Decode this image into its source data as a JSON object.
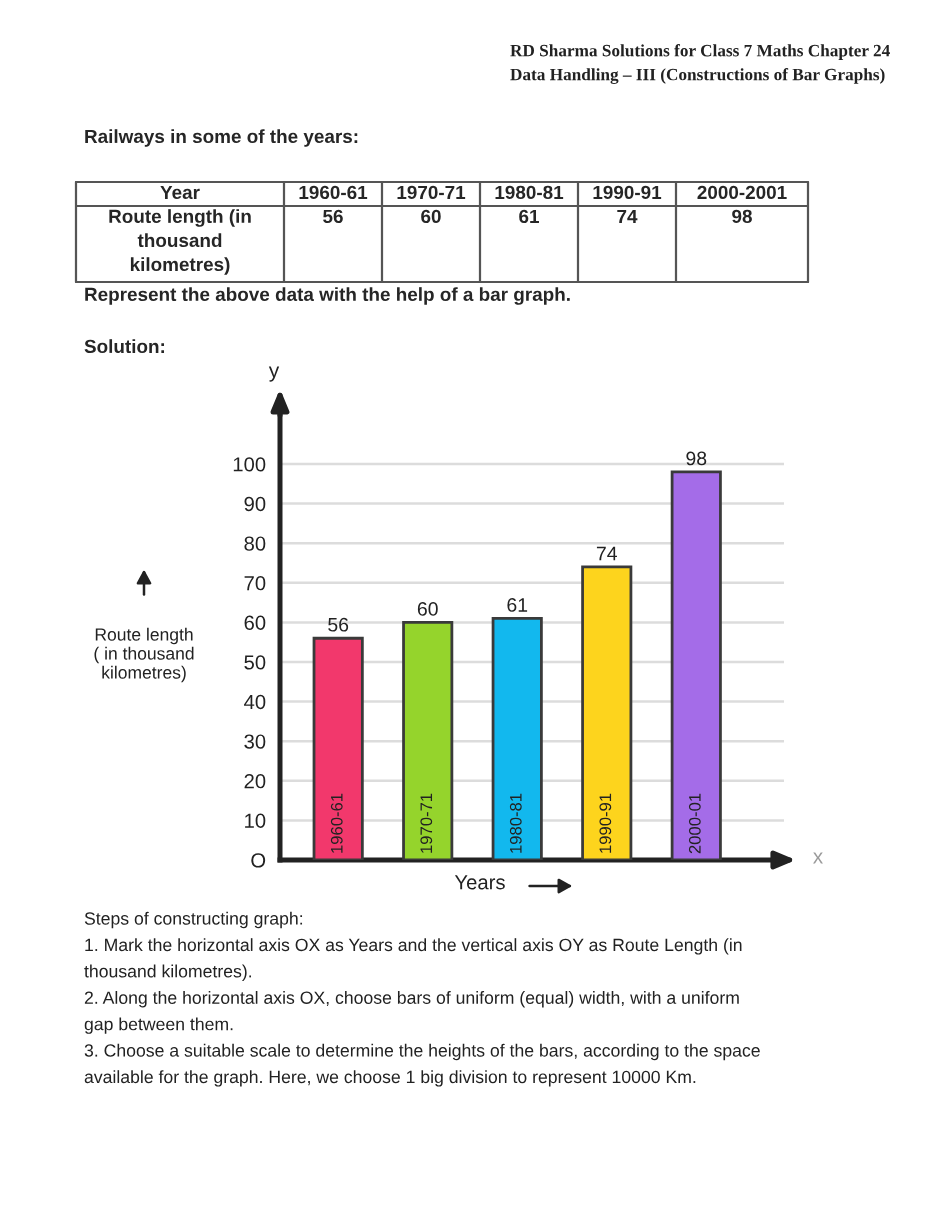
{
  "chart_data": {
    "type": "bar",
    "title": "Railways in some of the years:",
    "xlabel": "Years",
    "ylabel": "Route length\n( in thousand\nkilometres)",
    "annotations": [
      "RD Sharma Solutions for Class 7 Maths Chapter 24\nData Handling – III (Constructions of Bar Graphs)",
      "Year",
      "1960-61",
      "1970-71",
      "1980-81",
      "1990-91",
      "2000-2001",
      "Route length (in\nthousand\nkilometres)",
      "56",
      "60",
      "61",
      "74",
      "98",
      "Represent the above data with the help of a bar graph.",
      "Solution:",
      "y",
      "x",
      "Steps of constructing graph:\n1. Mark the horizontal axis OX as Years and the vertical axis OY as Route Length (in\nthousand kilometres).\n2. Along the horizontal axis OX, choose bars of uniform (equal) width, with a uniform\ngap between them.\n3. Choose a suitable scale to determine the heights of the bars, according to the space\navailable for the graph. Here, we choose 1 big division to represent 10000 Km."
    ],
    "categories": [
      "1960-61",
      "1970-71",
      "1980-81",
      "1990-91",
      "2000-01"
    ],
    "values": [
      56,
      60,
      61,
      74,
      98
    ],
    "colors": [
      "#f2386c",
      "#95d42c",
      "#12b8ee",
      "#fdd41d",
      "#a46ce8"
    ],
    "ylim": [
      0,
      112
    ],
    "yticks": [
      {
        "value": 0,
        "label": "O"
      },
      10,
      20,
      30,
      40,
      50,
      60,
      70,
      80,
      90,
      100
    ],
    "grid": "y",
    "data_labels": true
  }
}
